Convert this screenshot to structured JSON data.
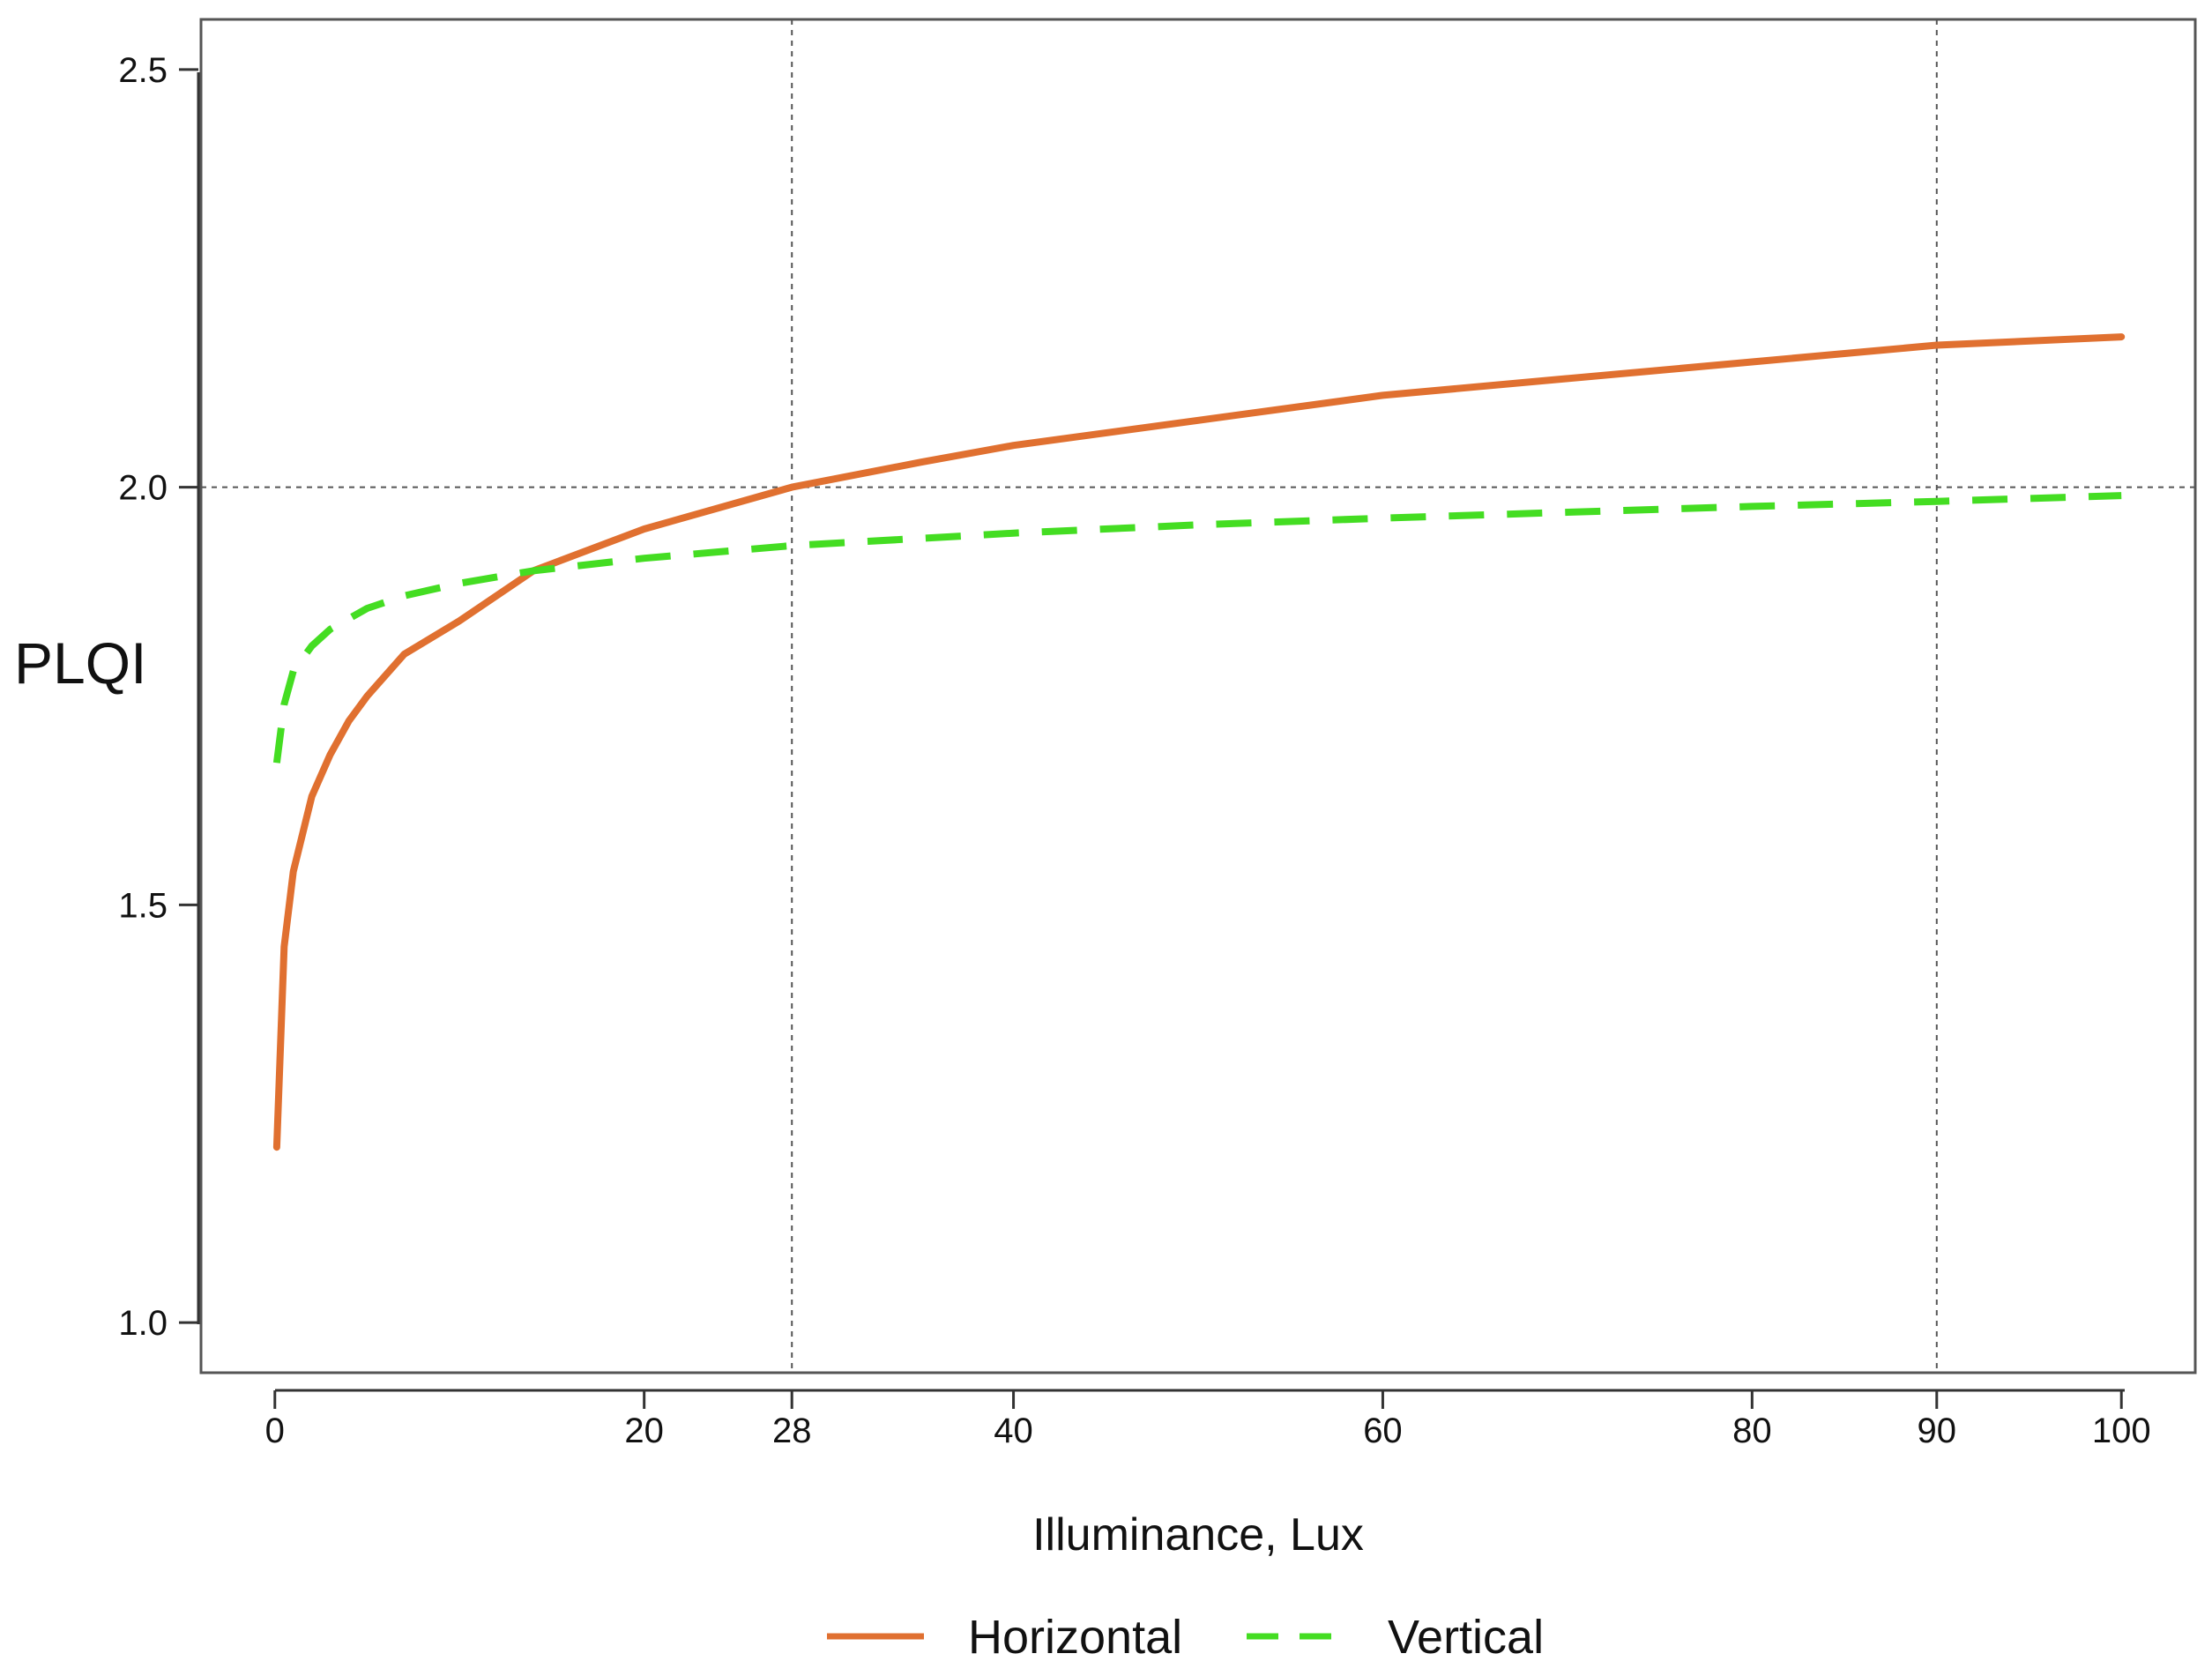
{
  "chart_data": {
    "type": "line",
    "title": "",
    "xlabel": "Illuminance, Lux",
    "ylabel": "PLQI",
    "xlim": [
      -4,
      104
    ],
    "ylim": [
      0.94,
      2.56
    ],
    "x_ticks": [
      0,
      20,
      28,
      40,
      60,
      80,
      90,
      100
    ],
    "y_ticks": [
      1.0,
      1.5,
      2.0,
      2.5
    ],
    "y_tick_labels": [
      "1.0",
      "1.5",
      "2.0",
      "2.5"
    ],
    "reference_lines": {
      "vertical": [
        28,
        90
      ],
      "horizontal": [
        2.0
      ]
    },
    "legend_position": "bottom",
    "series": [
      {
        "name": "Horizontal",
        "color": "#E07030",
        "style": "solid",
        "x": [
          0.1,
          0.5,
          1,
          2,
          3,
          4,
          5,
          7,
          10,
          14,
          20,
          28,
          35,
          40,
          50,
          60,
          70,
          80,
          90,
          100
        ],
        "y": [
          1.21,
          1.45,
          1.54,
          1.63,
          1.68,
          1.72,
          1.75,
          1.8,
          1.84,
          1.9,
          1.95,
          2.0,
          2.03,
          2.05,
          2.08,
          2.11,
          2.13,
          2.15,
          2.17,
          2.18
        ]
      },
      {
        "name": "Vertical",
        "color": "#44DD22",
        "style": "dashed",
        "x": [
          0.1,
          0.5,
          1,
          2,
          3,
          5,
          7,
          10,
          14,
          20,
          28,
          40,
          50,
          60,
          70,
          80,
          90,
          100
        ],
        "y": [
          1.67,
          1.74,
          1.78,
          1.81,
          1.83,
          1.855,
          1.87,
          1.885,
          1.9,
          1.915,
          1.93,
          1.945,
          1.955,
          1.963,
          1.97,
          1.977,
          1.983,
          1.99
        ]
      }
    ]
  }
}
